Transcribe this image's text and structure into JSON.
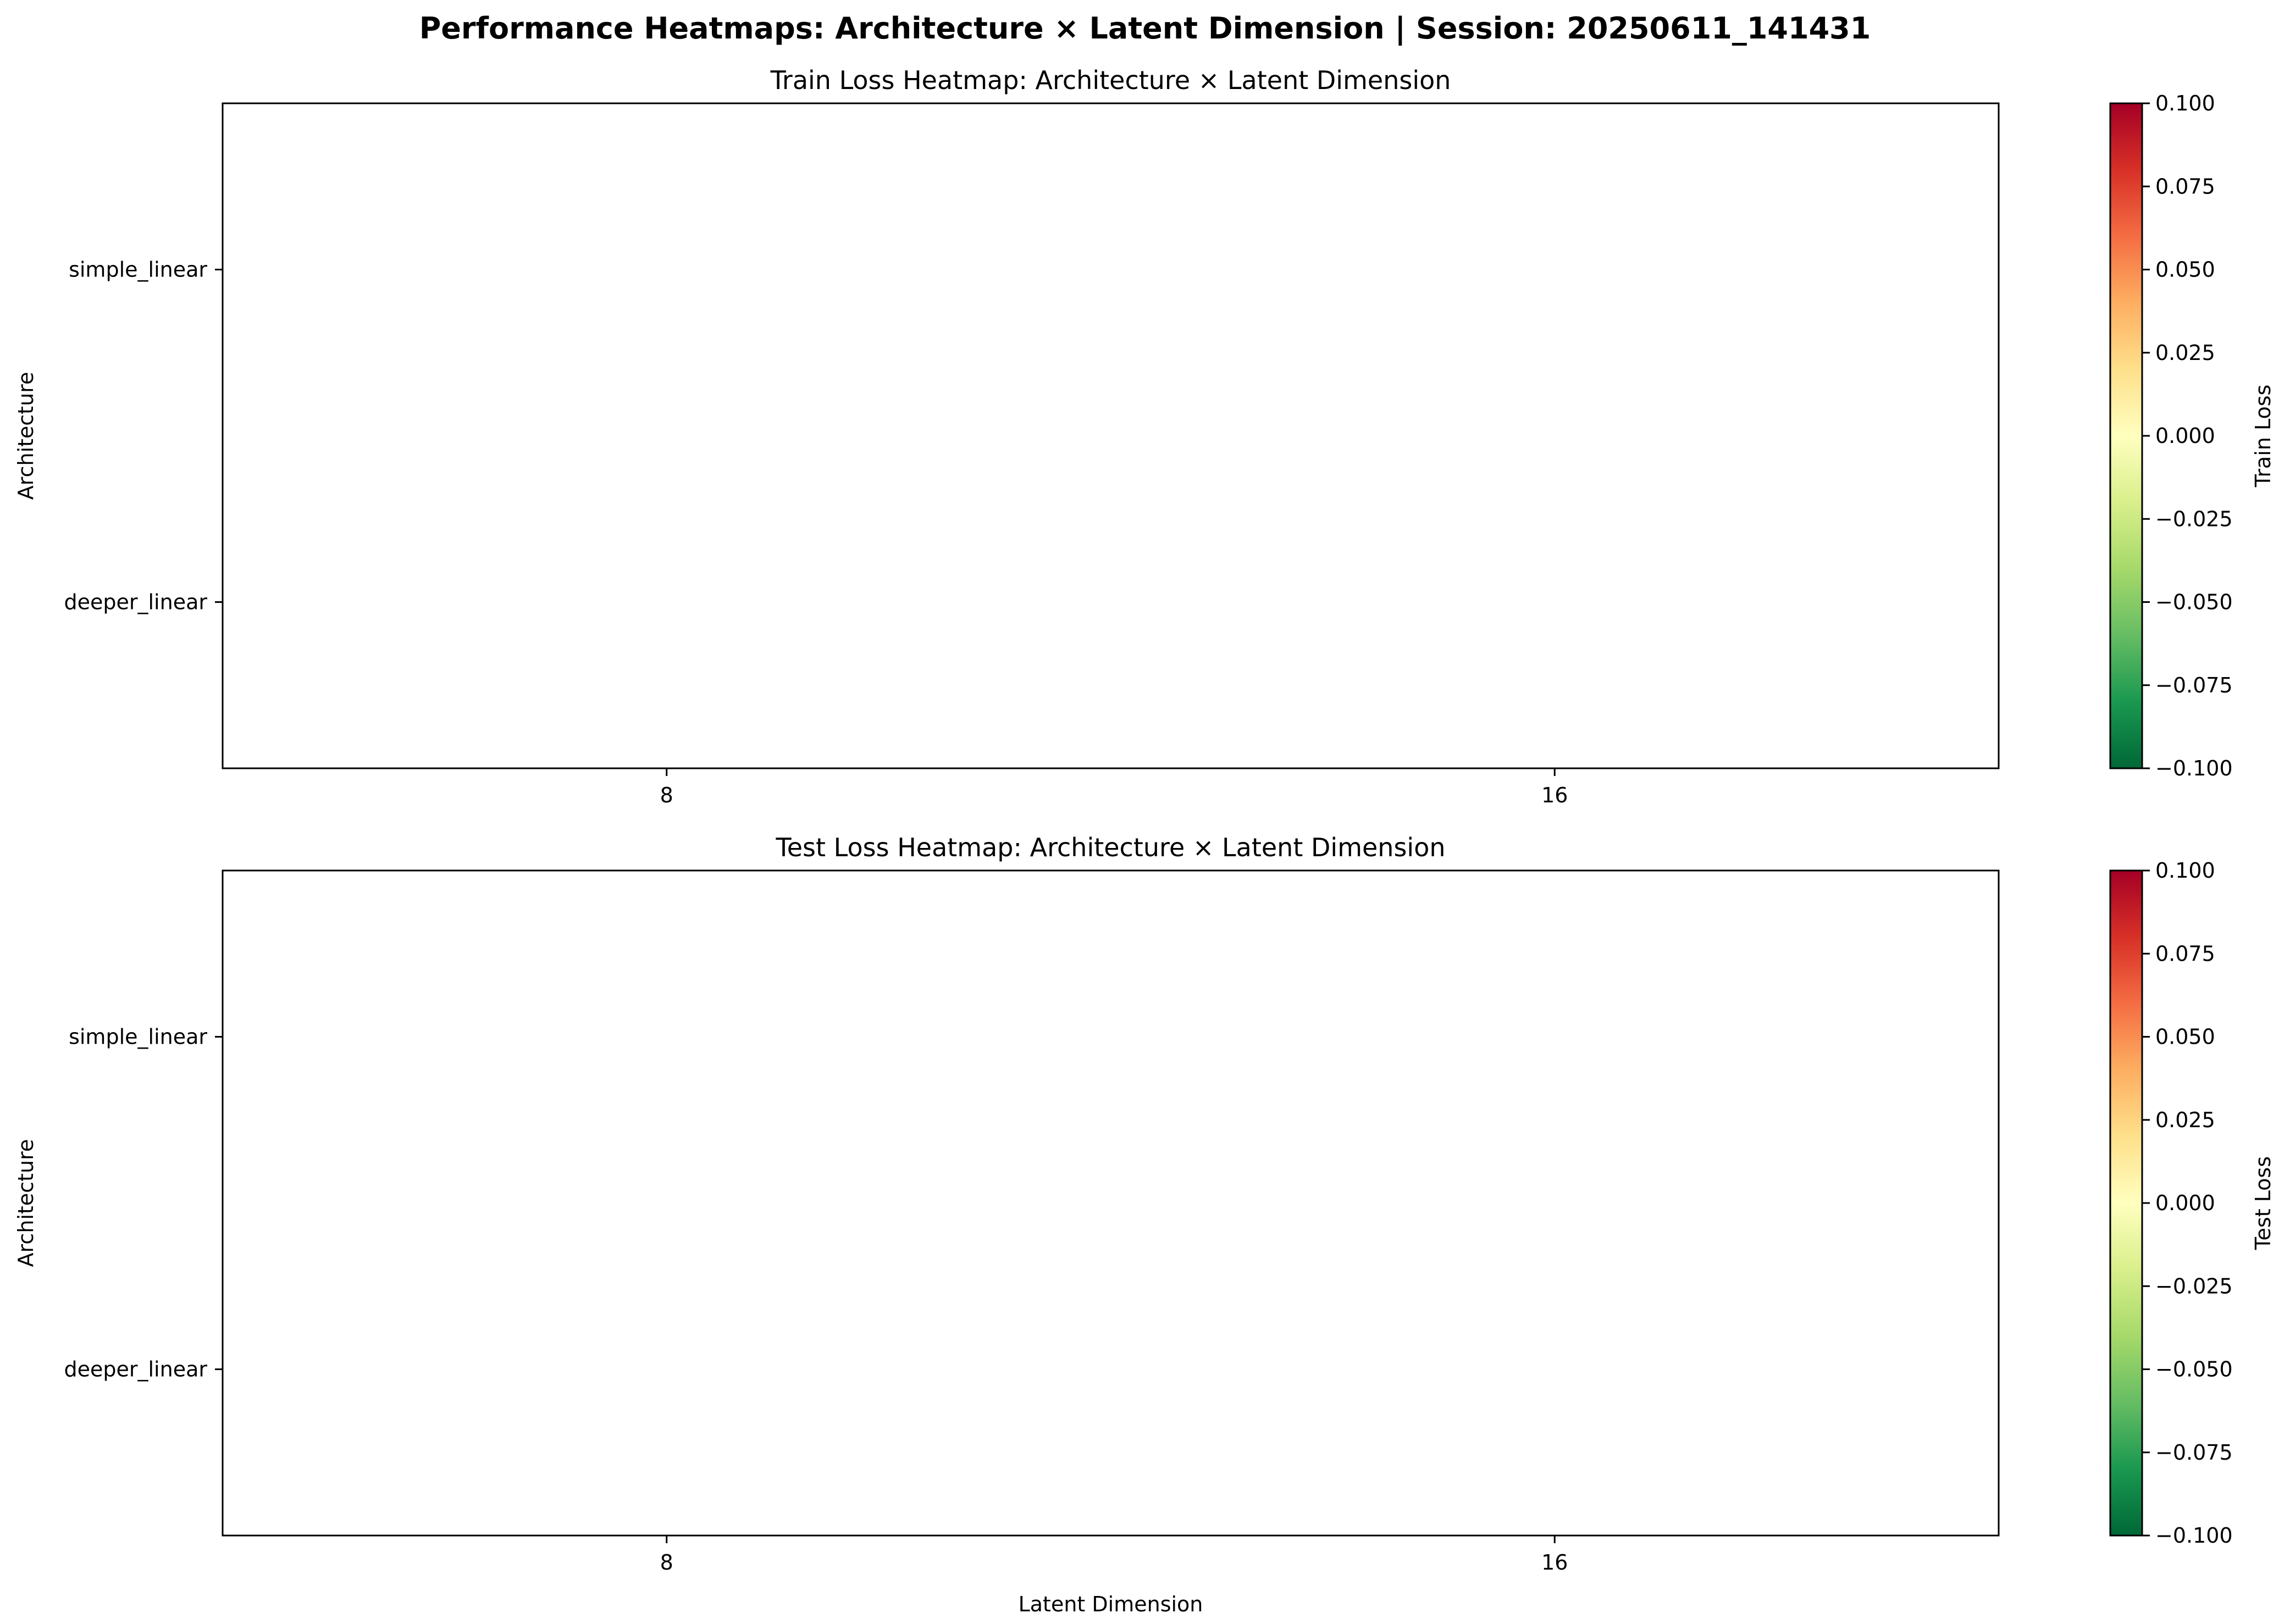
{
  "figure": {
    "suptitle": "Performance Heatmaps: Architecture × Latent Dimension | Session: 20250611_141431"
  },
  "colormap": {
    "name": "RdYlGn_r",
    "stops": [
      "#006837",
      "#1a9850",
      "#66bd63",
      "#a6d96a",
      "#d9ef8b",
      "#ffffbf",
      "#fee08b",
      "#fdae61",
      "#f46d43",
      "#d73027",
      "#a50026"
    ]
  },
  "chart_data": [
    {
      "type": "heatmap",
      "title": "Train Loss Heatmap: Architecture × Latent Dimension",
      "xlabel": "",
      "ylabel": "Architecture",
      "x_categories": [
        "8",
        "16"
      ],
      "y_categories": [
        "simple_linear",
        "deeper_linear"
      ],
      "values": [
        [
          null,
          null
        ],
        [
          null,
          null
        ]
      ],
      "colorbar": {
        "label": "Train Loss",
        "range": [
          -0.1,
          0.1
        ],
        "ticks": [
          "−0.100",
          "−0.075",
          "−0.050",
          "−0.025",
          "0.000",
          "0.025",
          "0.050",
          "0.075",
          "0.100"
        ]
      }
    },
    {
      "type": "heatmap",
      "title": "Test Loss Heatmap: Architecture × Latent Dimension",
      "xlabel": "Latent Dimension",
      "ylabel": "Architecture",
      "x_categories": [
        "8",
        "16"
      ],
      "y_categories": [
        "simple_linear",
        "deeper_linear"
      ],
      "values": [
        [
          null,
          null
        ],
        [
          null,
          null
        ]
      ],
      "colorbar": {
        "label": "Test Loss",
        "range": [
          -0.1,
          0.1
        ],
        "ticks": [
          "−0.100",
          "−0.075",
          "−0.050",
          "−0.025",
          "0.000",
          "0.025",
          "0.050",
          "0.075",
          "0.100"
        ]
      }
    }
  ]
}
